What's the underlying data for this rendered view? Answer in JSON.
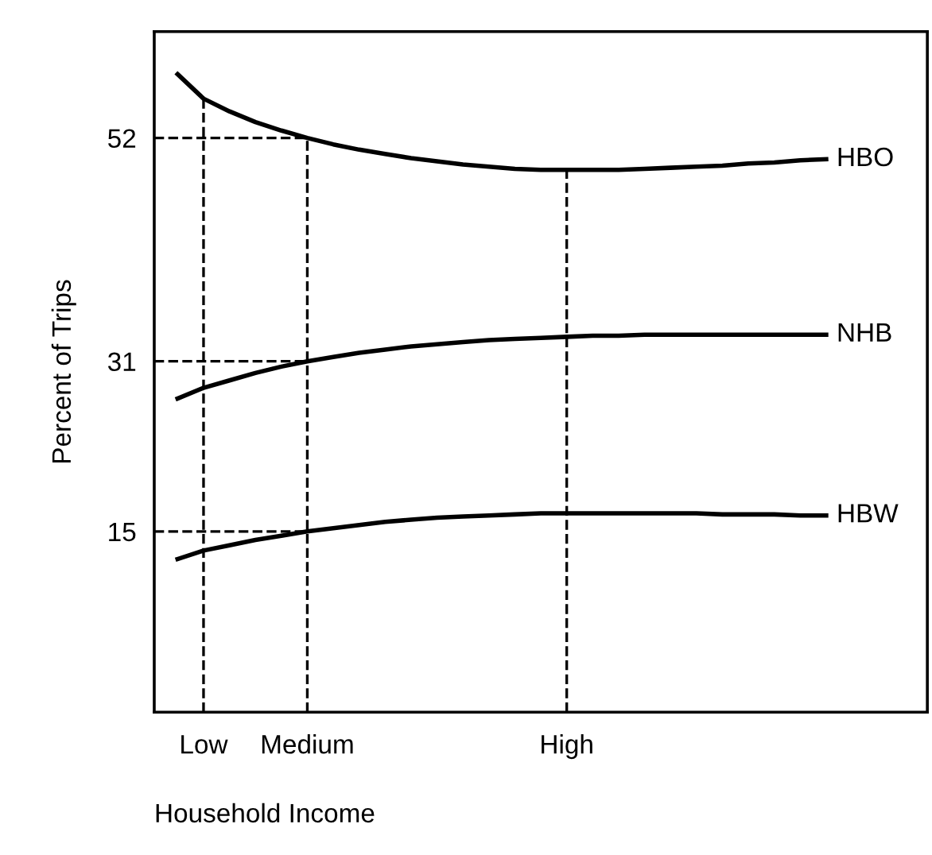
{
  "chart_data": {
    "type": "line",
    "xlabel": "Household Income",
    "ylabel": "Percent of Trips",
    "categories": [
      null,
      "Low",
      null,
      null,
      null,
      "Medium",
      null,
      null,
      null,
      null,
      null,
      null,
      null,
      null,
      null,
      "High",
      null,
      null,
      null,
      null,
      null,
      null,
      null,
      null,
      null,
      null
    ],
    "series": [
      {
        "name": "HBO",
        "color": "#000000",
        "values": [
          58,
          55.7,
          54.5,
          53.5,
          52.7,
          52,
          51.4,
          50.9,
          50.5,
          50.1,
          49.8,
          49.5,
          49.3,
          49.1,
          49,
          49,
          49,
          49,
          49.1,
          49.2,
          49.3,
          49.4,
          49.6,
          49.7,
          49.9,
          50
        ]
      },
      {
        "name": "NHB",
        "color": "#000000",
        "values": [
          27.5,
          28.5,
          29.2,
          29.9,
          30.5,
          31,
          31.4,
          31.8,
          32.1,
          32.4,
          32.6,
          32.8,
          33,
          33.1,
          33.2,
          33.3,
          33.4,
          33.4,
          33.5,
          33.5,
          33.5,
          33.5,
          33.5,
          33.5,
          33.5,
          33.5
        ]
      },
      {
        "name": "HBW",
        "color": "#000000",
        "values": [
          12.4,
          13.2,
          13.7,
          14.2,
          14.6,
          15,
          15.3,
          15.6,
          15.9,
          16.1,
          16.3,
          16.4,
          16.5,
          16.6,
          16.7,
          16.7,
          16.7,
          16.7,
          16.7,
          16.7,
          16.7,
          16.6,
          16.6,
          16.6,
          16.5,
          16.5
        ]
      }
    ],
    "ylim": [
      -2,
      62
    ],
    "yticks": [
      15,
      31,
      52
    ],
    "ref_lines": [
      {
        "axis": "y",
        "value": 52,
        "line_style": "dashed",
        "color": "#000000"
      },
      {
        "axis": "y",
        "value": 31,
        "line_style": "dashed",
        "color": "#000000"
      },
      {
        "axis": "y",
        "value": 15,
        "line_style": "dashed",
        "color": "#000000"
      },
      {
        "axis": "x",
        "value": "Low",
        "line_style": "dashed",
        "color": "#000000"
      },
      {
        "axis": "x",
        "value": "Medium",
        "line_style": "dashed",
        "color": "#000000"
      },
      {
        "axis": "x",
        "value": "High",
        "line_style": "dashed",
        "color": "#000000"
      }
    ],
    "grid": false,
    "legend": false,
    "marker": "none",
    "line_style": "solid"
  }
}
